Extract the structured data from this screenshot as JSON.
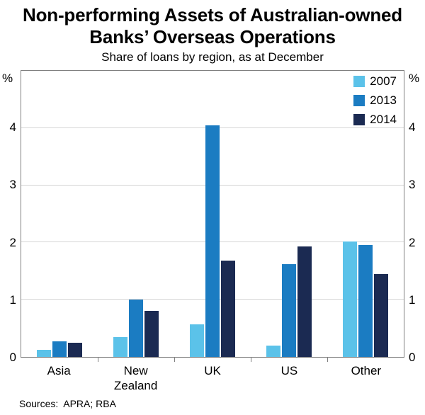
{
  "title_line1": "Non-performing Assets of Australian-owned",
  "title_line2": "Banks’ Overseas Operations",
  "subtitle": "Share of loans by region, as at December",
  "footer": "Sources:  APRA; RBA",
  "chart_data": {
    "type": "bar",
    "title": "Non-performing Assets of Australian-owned Banks’ Overseas Operations",
    "subtitle": "Share of loans by region, as at December",
    "categories": [
      "Asia",
      "New Zealand",
      "UK",
      "US",
      "Other"
    ],
    "series": [
      {
        "name": "2007",
        "color": "#5BC2E9",
        "values": [
          0.12,
          0.35,
          0.57,
          0.2,
          2.02
        ]
      },
      {
        "name": "2013",
        "color": "#1B7CC2",
        "values": [
          0.27,
          1.0,
          4.05,
          1.62,
          1.95
        ]
      },
      {
        "name": "2014",
        "color": "#1B2A52",
        "values": [
          0.25,
          0.8,
          1.68,
          1.93,
          1.45
        ]
      }
    ],
    "ylabel_unit": "%",
    "yticks": [
      0,
      1,
      2,
      3,
      4
    ],
    "ylim": [
      0,
      5
    ],
    "grid": true,
    "legend_position": "top-right",
    "sources": "APRA; RBA"
  }
}
